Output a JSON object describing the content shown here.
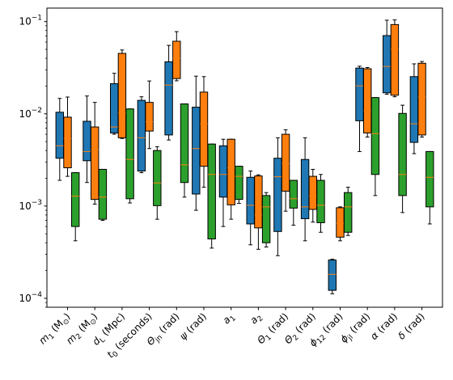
{
  "chart_data": {
    "type": "box",
    "y_scale": "log",
    "ylim": [
      8e-05,
      0.14
    ],
    "y_ticks": [
      {
        "value": 0.1,
        "base": "10",
        "exp": "−1"
      },
      {
        "value": 0.01,
        "base": "10",
        "exp": "−2"
      },
      {
        "value": 0.001,
        "base": "10",
        "exp": "−3"
      },
      {
        "value": 0.0001,
        "base": "10",
        "exp": "−4"
      }
    ],
    "categories": [
      {
        "main": "m",
        "sub": "1",
        "unit": " (M",
        "unit_sub": "⊙",
        "close": ")"
      },
      {
        "main": "m",
        "sub": "2",
        "unit": " (M",
        "unit_sub": "⊙",
        "close": ")"
      },
      {
        "main": "d",
        "sub": "L",
        "unit": " (Mpc)",
        "unit_sub": "",
        "close": ""
      },
      {
        "main": "t",
        "sub": "0",
        "unit": " (seconds)",
        "unit_sub": "",
        "close": ""
      },
      {
        "main": "Θ",
        "sub": "jn",
        "unit": " (rad)",
        "unit_sub": "",
        "close": ""
      },
      {
        "main": "ψ",
        "sub": "",
        "unit": " (rad)",
        "unit_sub": "",
        "close": ""
      },
      {
        "main": "a",
        "sub": "1",
        "unit": "",
        "unit_sub": "",
        "close": ""
      },
      {
        "main": "a",
        "sub": "2",
        "unit": "",
        "unit_sub": "",
        "close": ""
      },
      {
        "main": "Θ",
        "sub": "1",
        "unit": " (rad)",
        "unit_sub": "",
        "close": ""
      },
      {
        "main": "Θ",
        "sub": "2",
        "unit": " (rad)",
        "unit_sub": "",
        "close": ""
      },
      {
        "main": "ϕ",
        "sub": "12",
        "unit": " (rad)",
        "unit_sub": "",
        "close": ""
      },
      {
        "main": "ϕ",
        "sub": "jl",
        "unit": " (rad)",
        "unit_sub": "",
        "close": ""
      },
      {
        "main": "α",
        "sub": "",
        "unit": " (rad)",
        "unit_sub": "",
        "close": ""
      },
      {
        "main": "δ",
        "sub": "",
        "unit": " (rad)",
        "unit_sub": "",
        "close": ""
      }
    ],
    "series": [
      {
        "color": "#1f77b4",
        "boxes": [
          {
            "wl": 0.0019,
            "q1": 0.0033,
            "med": 0.0045,
            "q3": 0.0104,
            "wh": 0.0147
          },
          {
            "wl": 0.0018,
            "q1": 0.0031,
            "med": 0.0039,
            "q3": 0.0083,
            "wh": 0.0156
          },
          {
            "wl": 0.006,
            "q1": 0.0062,
            "med": 0.0072,
            "q3": 0.0212,
            "wh": 0.0275
          },
          {
            "wl": 0.0023,
            "q1": 0.0024,
            "med": 0.0055,
            "q3": 0.014,
            "wh": 0.0153
          },
          {
            "wl": 0.0052,
            "q1": 0.0059,
            "med": 0.0205,
            "q3": 0.0366,
            "wh": 0.0552
          },
          {
            "wl": 0.0009,
            "q1": 0.00135,
            "med": 0.0042,
            "q3": 0.0118,
            "wh": 0.0256
          },
          {
            "wl": 0.0006,
            "q1": 0.00125,
            "med": 0.0022,
            "q3": 0.0045,
            "wh": 0.0053
          },
          {
            "wl": 0.00038,
            "q1": 0.00064,
            "med": 0.00102,
            "q3": 0.00205,
            "wh": 0.0024
          },
          {
            "wl": 0.00029,
            "q1": 0.00053,
            "med": 0.00208,
            "q3": 0.0033,
            "wh": 0.0055
          },
          {
            "wl": 0.00042,
            "q1": 0.00073,
            "med": 0.00098,
            "q3": 0.0032,
            "wh": 0.0055
          },
          {
            "wl": 0.000112,
            "q1": 0.000122,
            "med": 0.000182,
            "q3": 0.00026,
            "wh": 0.000265
          },
          {
            "wl": 0.0039,
            "q1": 0.0084,
            "med": 0.0201,
            "q3": 0.0313,
            "wh": 0.0328
          },
          {
            "wl": 0.0163,
            "q1": 0.0169,
            "med": 0.0326,
            "q3": 0.0705,
            "wh": 0.1035
          },
          {
            "wl": 0.0037,
            "q1": 0.0049,
            "med": 0.0078,
            "q3": 0.0253,
            "wh": 0.0348
          }
        ]
      },
      {
        "color": "#ff7f0e",
        "boxes": [
          {
            "wl": 0.0021,
            "q1": 0.0026,
            "med": 0.0054,
            "q3": 0.0092,
            "wh": 0.0152
          },
          {
            "wl": 0.00105,
            "q1": 0.00118,
            "med": 0.0041,
            "q3": 0.0072,
            "wh": 0.0133
          },
          {
            "wl": 0.0054,
            "q1": 0.0055,
            "med": 0.0102,
            "q3": 0.0452,
            "wh": 0.0492
          },
          {
            "wl": 0.0042,
            "q1": 0.0065,
            "med": 0.0082,
            "q3": 0.0133,
            "wh": 0.0227
          },
          {
            "wl": 0.0228,
            "q1": 0.0241,
            "med": 0.0402,
            "q3": 0.0612,
            "wh": 0.0778
          },
          {
            "wl": 0.0016,
            "q1": 0.0027,
            "med": 0.0078,
            "q3": 0.0172,
            "wh": 0.0253
          },
          {
            "wl": 0.00072,
            "q1": 0.00103,
            "med": 0.0026,
            "q3": 0.0053,
            "wh": 0.0053
          },
          {
            "wl": 0.00034,
            "q1": 0.00058,
            "med": 0.0008,
            "q3": 0.00212,
            "wh": 0.00218
          },
          {
            "wl": 0.00088,
            "q1": 0.00145,
            "med": 0.0029,
            "q3": 0.006,
            "wh": 0.0067
          },
          {
            "wl": 0.00067,
            "q1": 0.00092,
            "med": 0.00128,
            "q3": 0.0021,
            "wh": 0.0025
          },
          {
            "wl": 0.00042,
            "q1": 0.00046,
            "med": 0.00065,
            "q3": 0.00096,
            "wh": 0.00098
          },
          {
            "wl": 0.0056,
            "q1": 0.0062,
            "med": 0.0108,
            "q3": 0.0308,
            "wh": 0.0318
          },
          {
            "wl": 0.0153,
            "q1": 0.0159,
            "med": 0.0502,
            "q3": 0.0928,
            "wh": 0.1042
          },
          {
            "wl": 0.0056,
            "q1": 0.0059,
            "med": 0.0152,
            "q3": 0.0353,
            "wh": 0.0369
          }
        ]
      },
      {
        "color": "#2ca02c",
        "boxes": [
          {
            "wl": 0.00042,
            "q1": 0.0006,
            "med": 0.00128,
            "q3": 0.0023,
            "wh": 0.0023
          },
          {
            "wl": 0.0007,
            "q1": 0.00072,
            "med": 0.00125,
            "q3": 0.0025,
            "wh": 0.0025
          },
          {
            "wl": 0.00108,
            "q1": 0.0012,
            "med": 0.0032,
            "q3": 0.0113,
            "wh": 0.0113
          },
          {
            "wl": 0.00072,
            "q1": 0.00101,
            "med": 0.00178,
            "q3": 0.004,
            "wh": 0.0044
          },
          {
            "wl": 0.00125,
            "q1": 0.0018,
            "med": 0.0028,
            "q3": 0.0128,
            "wh": 0.0128
          },
          {
            "wl": 0.00035,
            "q1": 0.00044,
            "med": 0.0022,
            "q3": 0.0047,
            "wh": 0.0047
          },
          {
            "wl": 0.00107,
            "q1": 0.00118,
            "med": 0.0021,
            "q3": 0.0027,
            "wh": 0.0027
          },
          {
            "wl": 0.00036,
            "q1": 0.0004,
            "med": 0.00098,
            "q3": 0.0013,
            "wh": 0.0014
          },
          {
            "wl": 0.00062,
            "q1": 0.00095,
            "med": 0.0012,
            "q3": 0.0019,
            "wh": 0.0019
          },
          {
            "wl": 0.00052,
            "q1": 0.00066,
            "med": 0.00102,
            "q3": 0.0019,
            "wh": 0.0022
          },
          {
            "wl": 0.00048,
            "q1": 0.00052,
            "med": 0.00098,
            "q3": 0.0014,
            "wh": 0.0016
          },
          {
            "wl": 0.0013,
            "q1": 0.0022,
            "med": 0.0061,
            "q3": 0.015,
            "wh": 0.015
          },
          {
            "wl": 0.00085,
            "q1": 0.0013,
            "med": 0.0022,
            "q3": 0.0101,
            "wh": 0.0124
          },
          {
            "wl": 0.00064,
            "q1": 0.00098,
            "med": 0.00205,
            "q3": 0.0039,
            "wh": 0.0039
          }
        ]
      }
    ]
  }
}
